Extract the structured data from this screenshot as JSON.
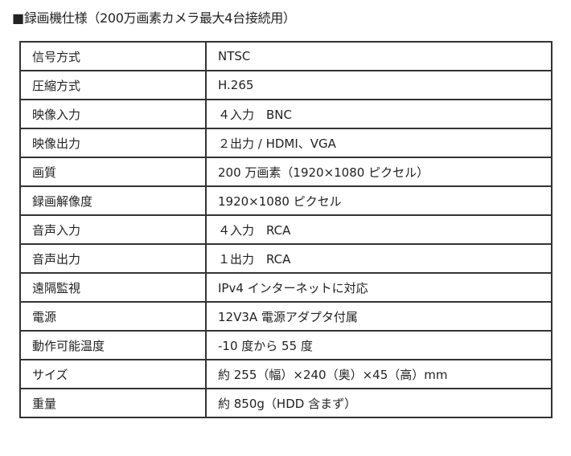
{
  "title": "■録画機仕様（200万画素カメラ最大4台接続用）",
  "specs": [
    {
      "label": "信号方式",
      "value": "NTSC"
    },
    {
      "label": "圧縮方式",
      "value": "H.265"
    },
    {
      "label": "映像入力",
      "value": "４入力　BNC"
    },
    {
      "label": "映像出力",
      "value": "２出力 / HDMI、VGA"
    },
    {
      "label": "画質",
      "value": "200 万画素（1920×1080 ピクセル）"
    },
    {
      "label": "録画解像度",
      "value": "1920×1080 ピクセル"
    },
    {
      "label": "音声入力",
      "value": "４入力　RCA"
    },
    {
      "label": "音声出力",
      "value": "１出力　RCA"
    },
    {
      "label": "遠隔監視",
      "value": "IPv4 インターネットに対応"
    },
    {
      "label": "電源",
      "value": "12V3A 電源アダプタ付属"
    },
    {
      "label": "動作可能温度",
      "value": "-10 度から 55 度"
    },
    {
      "label": "サイズ",
      "value": "約 255（幅）×240（奥）×45（高）mm"
    },
    {
      "label": "重量",
      "value": "約 850g（HDD 含まず）"
    }
  ]
}
